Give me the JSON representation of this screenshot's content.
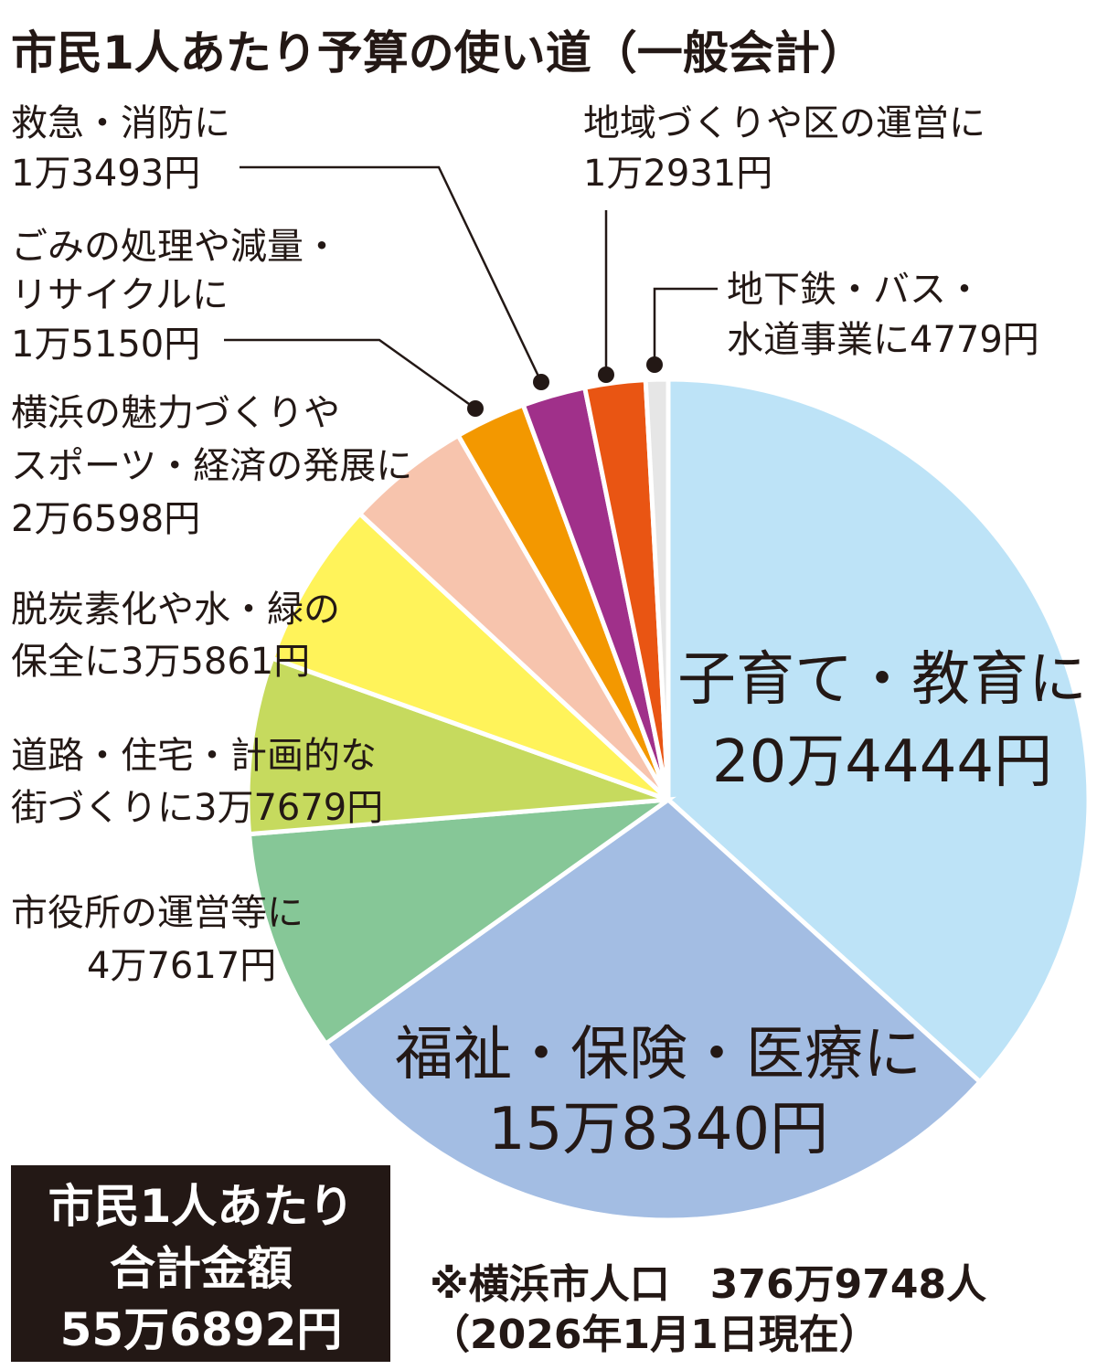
{
  "chart_data": {
    "type": "pie",
    "title": "市民1人あたり予算の使い道（一般会計）",
    "unit": "円",
    "direction": "clockwise from top",
    "slices": [
      {
        "label": [
          "子育て・教育に",
          "20万4444円"
        ],
        "value": 204444,
        "color": "#bde3f7"
      },
      {
        "label": [
          "福祉・保険・医療に",
          "15万8340円"
        ],
        "value": 158340,
        "color": "#a3bde3"
      },
      {
        "label": [
          "市役所の運営等に",
          "4万7617円"
        ],
        "value": 47617,
        "color": "#86c797"
      },
      {
        "label": [
          "道路・住宅・計画的な",
          "街づくりに3万7679円"
        ],
        "value": 37679,
        "color": "#c6da5e"
      },
      {
        "label": [
          "脱炭素化や水・緑の",
          "保全に3万5861円"
        ],
        "value": 35861,
        "color": "#fff35a"
      },
      {
        "label": [
          "横浜の魅力づくりや",
          "スポーツ・経済の発展に",
          "2万6598円"
        ],
        "value": 26598,
        "color": "#f7c4ad"
      },
      {
        "label": [
          "ごみの処理や減量・",
          "リサイクルに",
          "1万5150円"
        ],
        "value": 15150,
        "color": "#f39800"
      },
      {
        "label": [
          "救急・消防に",
          "1万3493円"
        ],
        "value": 13493,
        "color": "#a0308a"
      },
      {
        "label": [
          "地域づくりや区の運営に",
          "1万2931円"
        ],
        "value": 12931,
        "color": "#e95513"
      },
      {
        "label": [
          "地下鉄・バス・",
          "水道事業に4779円"
        ],
        "value": 4779,
        "color": "#e6e6e6"
      }
    ]
  },
  "total_box": {
    "lines": [
      "市民1人あたり",
      "合計金額",
      "55万6892円"
    ],
    "color": "#231815"
  },
  "note": {
    "lines": [
      "※横浜市人口　376万9748人",
      "（2026年1月1日現在）"
    ]
  }
}
